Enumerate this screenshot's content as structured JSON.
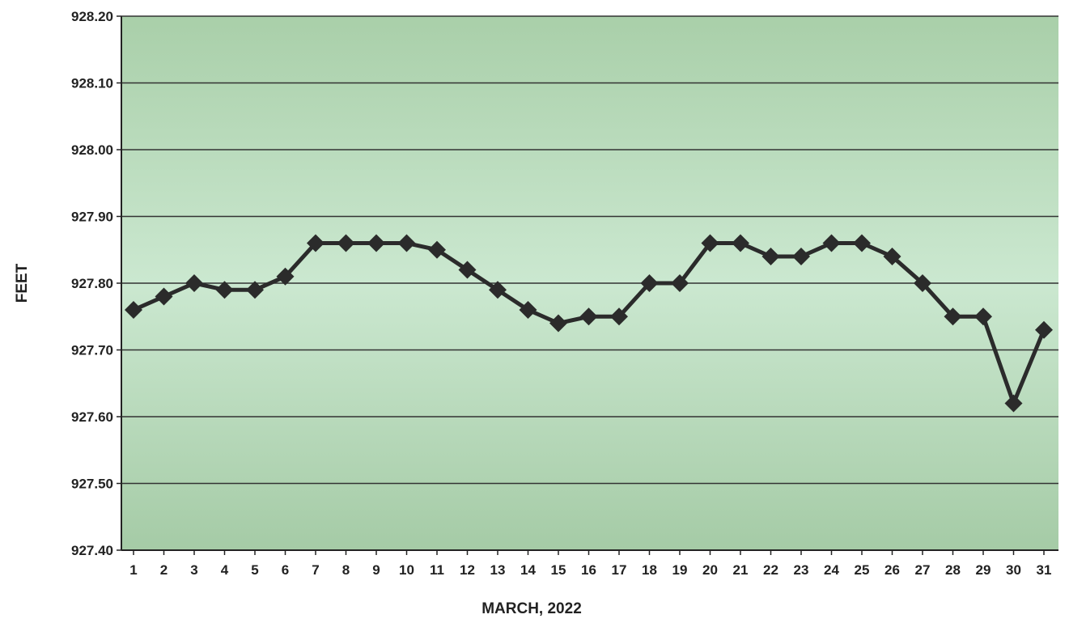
{
  "chart_data": {
    "type": "line",
    "title": "",
    "xlabel": "MARCH, 2022",
    "ylabel": "FEET",
    "x": [
      "1",
      "2",
      "3",
      "4",
      "5",
      "6",
      "7",
      "8",
      "9",
      "10",
      "11",
      "12",
      "13",
      "14",
      "15",
      "16",
      "17",
      "18",
      "19",
      "20",
      "21",
      "22",
      "23",
      "24",
      "25",
      "26",
      "27",
      "28",
      "29",
      "30",
      "31"
    ],
    "series": [
      {
        "values": [
          927.76,
          927.78,
          927.8,
          927.79,
          927.79,
          927.81,
          927.86,
          927.86,
          927.86,
          927.86,
          927.85,
          927.82,
          927.79,
          927.76,
          927.74,
          927.75,
          927.75,
          927.8,
          927.8,
          927.86,
          927.86,
          927.84,
          927.84,
          927.86,
          927.86,
          927.84,
          927.8,
          927.75,
          927.75,
          927.62,
          927.73
        ],
        "color": "#2b2b2b",
        "marker": "diamond"
      }
    ],
    "ylim": [
      927.4,
      928.2
    ],
    "yticks": [
      "927.40",
      "927.50",
      "927.60",
      "927.70",
      "927.80",
      "927.90",
      "928.00",
      "928.10",
      "928.20"
    ],
    "grid": "horizontal",
    "plot_background": "#bfe0c3",
    "legend": "none"
  }
}
